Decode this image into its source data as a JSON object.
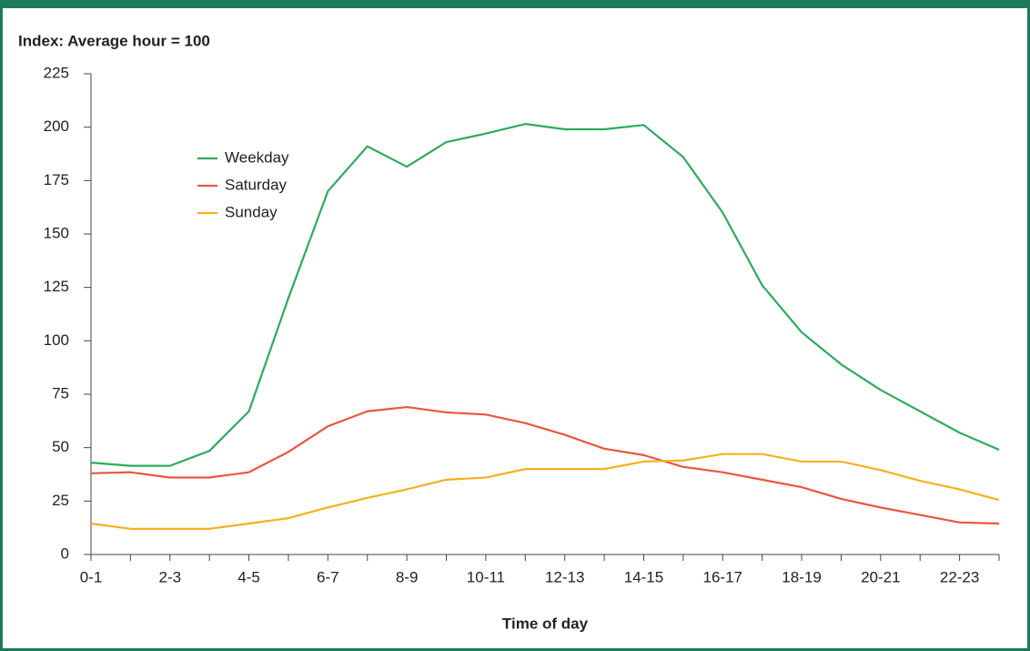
{
  "chart_data": {
    "type": "line",
    "title": "Index: Average hour = 100",
    "x_label": "Time of day",
    "categories": [
      "0-1",
      null,
      "2-3",
      null,
      "4-5",
      null,
      "6-7",
      null,
      "8-9",
      null,
      "10-11",
      null,
      "12-13",
      null,
      "14-15",
      null,
      "16-17",
      null,
      "18-19",
      null,
      "20-21",
      null,
      "22-23",
      null
    ],
    "series": [
      {
        "name": "Weekday",
        "color": "#2eab5e",
        "values": [
          43,
          41.5,
          41.5,
          48.5,
          67,
          120,
          170,
          191,
          181.5,
          193,
          197,
          201.5,
          199,
          199,
          201,
          186,
          160,
          126,
          104,
          89,
          77,
          67,
          57,
          49
        ]
      },
      {
        "name": "Saturday",
        "color": "#e8573f",
        "values": [
          38,
          38.5,
          36,
          36,
          38.5,
          48,
          60,
          67,
          69,
          66.5,
          65.5,
          61.5,
          56,
          49.5,
          46.5,
          41,
          38.5,
          35,
          31.5,
          26,
          22,
          18.5,
          15,
          14.5
        ]
      },
      {
        "name": "Sunday",
        "color": "#f5b120",
        "values": [
          14.5,
          12,
          12,
          12,
          14.5,
          17,
          22,
          26.5,
          30.5,
          35,
          36,
          40,
          40,
          40,
          43.5,
          44,
          47,
          47,
          43.5,
          43.5,
          39.5,
          34.5,
          30.5,
          25.5
        ]
      }
    ],
    "ylim": [
      0,
      225
    ],
    "yticks": [
      0,
      25,
      50,
      75,
      100,
      125,
      150,
      175,
      200,
      225
    ],
    "grid": false
  }
}
